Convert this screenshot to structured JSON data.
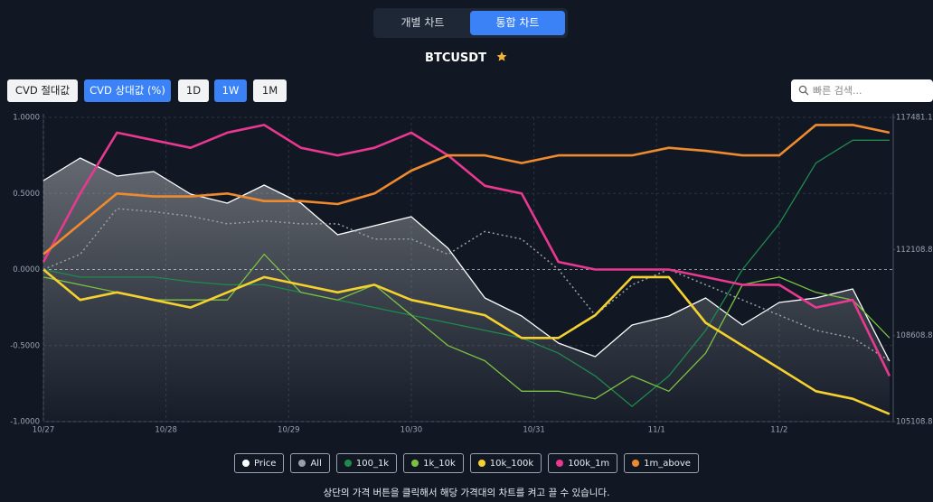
{
  "tabs": [
    "개별 차트",
    "통합 차트"
  ],
  "symbol": "BTCUSDT",
  "filters": [
    "CVD 절대값",
    "CVD 상대값 (%)",
    "1D",
    "1W",
    "1M"
  ],
  "search_placeholder": "빠른 검색...",
  "chart_data": {
    "type": "line",
    "x": [
      0,
      0.3,
      0.6,
      0.9,
      1.2,
      1.5,
      1.8,
      2.1,
      2.4,
      2.7,
      3.0,
      3.3,
      3.6,
      3.9,
      4.2,
      4.5,
      4.8,
      5.1,
      5.4,
      5.7,
      6.0,
      6.3,
      6.6,
      6.9
    ],
    "xlim": [
      0,
      6.93
    ],
    "xticks": [
      {
        "value": 0,
        "label": "10/27"
      },
      {
        "value": 1,
        "label": "10/28"
      },
      {
        "value": 2,
        "label": "10/29"
      },
      {
        "value": 3,
        "label": "10/30"
      },
      {
        "value": 4,
        "label": "10/31"
      },
      {
        "value": 5,
        "label": "11/1"
      },
      {
        "value": 6,
        "label": "11/2"
      }
    ],
    "ylim": [
      -1,
      1
    ],
    "yticks": [
      {
        "value": 1,
        "label": "1.0000"
      },
      {
        "value": 0.5,
        "label": "0.5000"
      },
      {
        "value": 0,
        "label": "0.0000"
      },
      {
        "value": -0.5,
        "label": "-0.5000"
      },
      {
        "value": -1,
        "label": "-1.0000"
      }
    ],
    "y2lim": [
      105108.8,
      117481.1
    ],
    "y2ticks": [
      117481.1,
      112108.8,
      108608.8,
      105108.8
    ],
    "grid": true,
    "series": [
      {
        "name": "Price",
        "color": "#ffffff",
        "axis": "y2",
        "area": true,
        "values": [
          114911,
          115829,
          115095,
          115279,
          114361,
          113994,
          114728,
          113994,
          112709,
          113076,
          113443,
          112158,
          110139,
          109405,
          108304,
          107753,
          109038,
          109405,
          110139,
          109038,
          109956,
          110139,
          110506,
          107569
        ]
      },
      {
        "name": "All",
        "color": "#9aa0a6",
        "line_style": "dotted",
        "values": [
          0,
          0.1,
          0.4,
          0.38,
          0.35,
          0.3,
          0.32,
          0.3,
          0.3,
          0.2,
          0.2,
          0.1,
          0.25,
          0.2,
          0,
          -0.3,
          -0.1,
          0,
          -0.1,
          -0.2,
          -0.3,
          -0.4,
          -0.45,
          -0.6
        ]
      },
      {
        "name": "100_1k",
        "color": "#1e8a4c",
        "values": [
          0,
          -0.05,
          -0.05,
          -0.05,
          -0.08,
          -0.1,
          -0.1,
          -0.15,
          -0.2,
          -0.25,
          -0.3,
          -0.35,
          -0.4,
          -0.45,
          -0.55,
          -0.7,
          -0.9,
          -0.7,
          -0.4,
          0,
          0.3,
          0.7,
          0.85,
          0.85
        ]
      },
      {
        "name": "1k_10k",
        "color": "#7cc242",
        "values": [
          -0.05,
          -0.1,
          -0.15,
          -0.2,
          -0.2,
          -0.2,
          0.1,
          -0.15,
          -0.2,
          -0.1,
          -0.3,
          -0.5,
          -0.6,
          -0.8,
          -0.8,
          -0.85,
          -0.7,
          -0.8,
          -0.55,
          -0.1,
          -0.05,
          -0.15,
          -0.2,
          -0.45
        ]
      },
      {
        "name": "10k_100k",
        "color": "#f5d130",
        "values": [
          0,
          -0.2,
          -0.15,
          -0.2,
          -0.25,
          -0.15,
          -0.05,
          -0.1,
          -0.15,
          -0.1,
          -0.2,
          -0.25,
          -0.3,
          -0.45,
          -0.45,
          -0.3,
          -0.05,
          -0.05,
          -0.35,
          -0.5,
          -0.65,
          -0.8,
          -0.85,
          -0.95
        ]
      },
      {
        "name": "100k_1m",
        "color": "#e8388f",
        "values": [
          0.05,
          0.5,
          0.9,
          0.85,
          0.8,
          0.9,
          0.95,
          0.8,
          0.75,
          0.8,
          0.9,
          0.75,
          0.55,
          0.5,
          0.05,
          0,
          0,
          0,
          -0.05,
          -0.1,
          -0.1,
          -0.25,
          -0.2,
          -0.7
        ]
      },
      {
        "name": "1m_above",
        "color": "#ef8a2e",
        "values": [
          0.1,
          0.3,
          0.5,
          0.48,
          0.48,
          0.5,
          0.45,
          0.45,
          0.43,
          0.5,
          0.65,
          0.75,
          0.75,
          0.7,
          0.75,
          0.75,
          0.75,
          0.8,
          0.78,
          0.75,
          0.75,
          0.95,
          0.95,
          0.9
        ]
      }
    ]
  },
  "footer": "상단의 가격 버튼을 클릭해서 해당 가격대의 차트를 켜고 끌 수 있습니다."
}
